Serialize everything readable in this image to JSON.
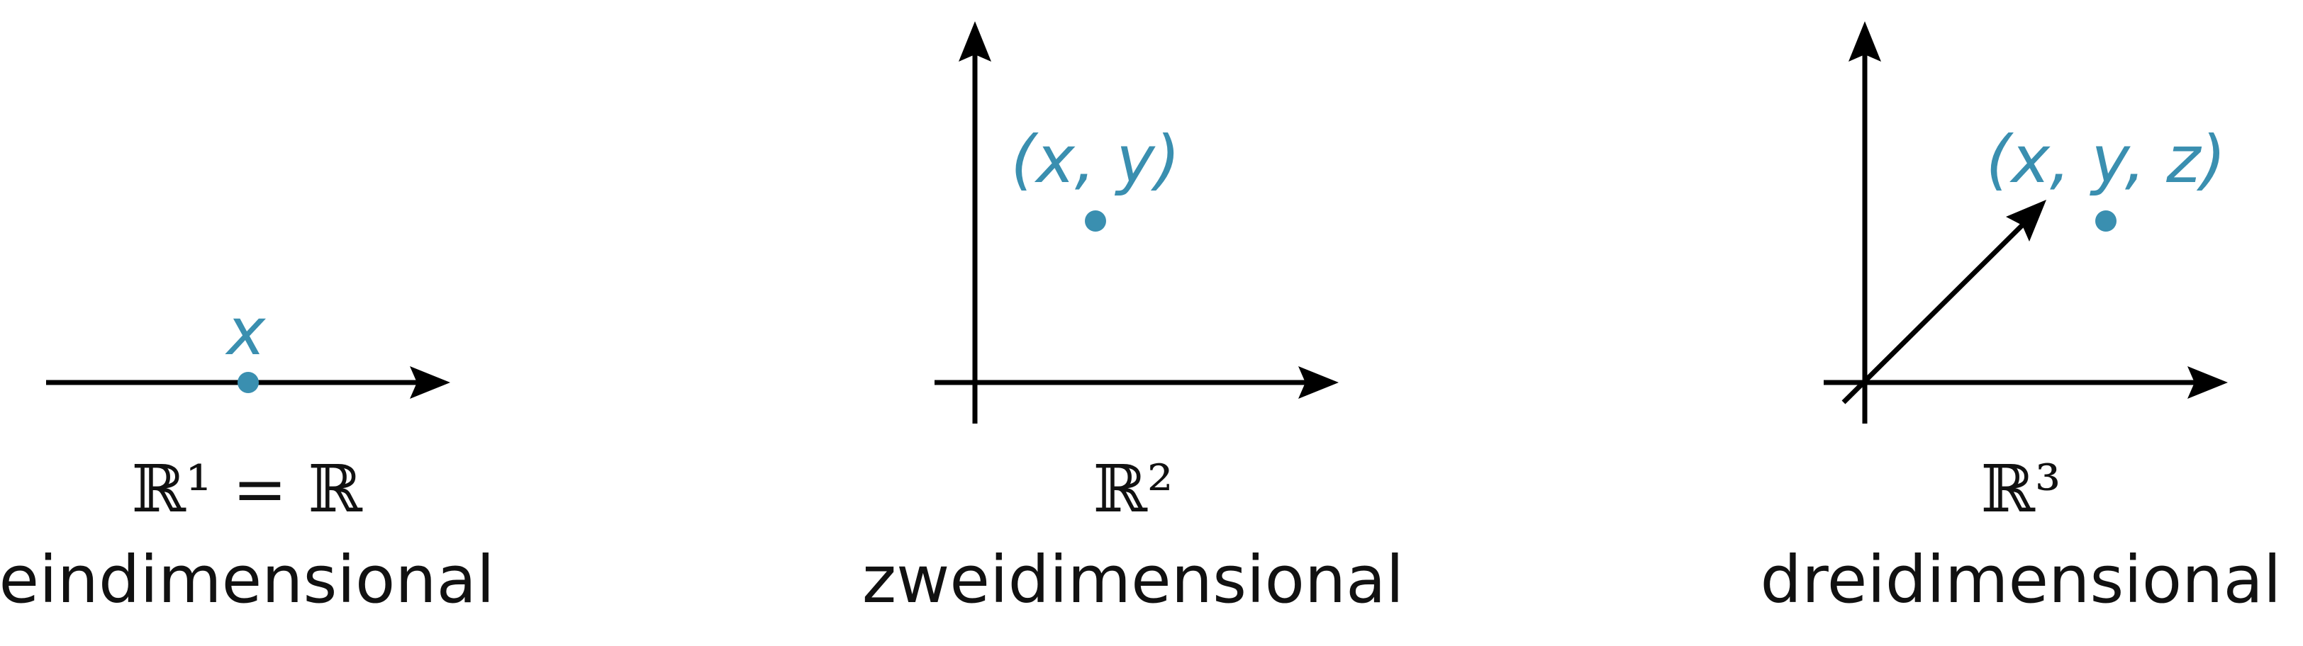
{
  "colors": {
    "point": "#3a8fb0",
    "axis": "#000000",
    "text": "#111111"
  },
  "panel_1d": {
    "point_label": "x",
    "space_label": "ℝ¹ = ℝ",
    "dim_label": "eindimensional"
  },
  "panel_2d": {
    "point_label": "(x, y)",
    "space_label": "ℝ²",
    "dim_label": "zweidimensional"
  },
  "panel_3d": {
    "point_label": "(x, y, z)",
    "space_label": "ℝ³",
    "dim_label": "dreidimensional"
  }
}
